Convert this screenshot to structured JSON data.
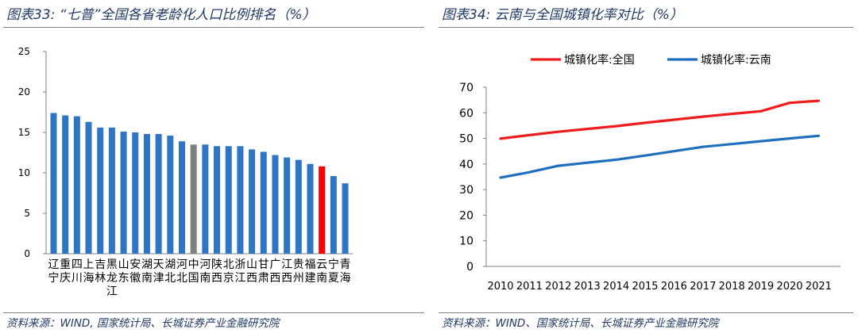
{
  "left": {
    "title": "图表33:  “七普”全国各省老龄化人口比例排名（%）",
    "source": "资料来源：WIND, 国家统计局、长城证券产业金融研究院"
  },
  "right": {
    "title": "图表34:  云南与全国城镇化率对比（%）",
    "source": "资料来源：WIND、国家统计局、长城证券产业金融研究院"
  },
  "colors": {
    "bar_default": "#2e75c5",
    "bar_national": "#808080",
    "bar_yunnan": "#ff0000",
    "line_national": "#ee1c1c",
    "line_yunnan": "#1f6fbf",
    "title": "#1f3864"
  },
  "chart_data": [
    {
      "type": "bar",
      "categories": [
        "辽宁",
        "重庆",
        "四川",
        "上海",
        "吉林",
        "黑龙江",
        "山东",
        "安徽",
        "湖南",
        "天津",
        "湖北",
        "河北",
        "中国",
        "河南",
        "陕西",
        "北京",
        "浙江",
        "山西",
        "甘肃",
        "广西",
        "江西",
        "贵州",
        "福建",
        "云南",
        "宁夏",
        "青海"
      ],
      "values": [
        17.4,
        17.1,
        17.0,
        16.3,
        15.6,
        15.6,
        15.1,
        15.0,
        14.8,
        14.8,
        14.6,
        13.9,
        13.5,
        13.5,
        13.3,
        13.3,
        13.3,
        12.9,
        12.6,
        12.2,
        11.9,
        11.6,
        11.1,
        10.8,
        9.6,
        8.7
      ],
      "highlight": {
        "中国": "national",
        "云南": "yunnan"
      },
      "ylim": [
        0,
        25
      ],
      "yticks": [
        0,
        5,
        10,
        15,
        20,
        25
      ],
      "grid": false
    },
    {
      "type": "line",
      "x": [
        "2010",
        "2011",
        "2012",
        "2013",
        "2014",
        "2015",
        "2016",
        "2017",
        "2018",
        "2019",
        "2020",
        "2021"
      ],
      "series": [
        {
          "name": "城镇化率:全国",
          "values": [
            49.9,
            51.3,
            52.6,
            53.7,
            54.8,
            56.1,
            57.3,
            58.5,
            59.6,
            60.6,
            63.9,
            64.7
          ]
        },
        {
          "name": "城镇化率:云南",
          "values": [
            34.7,
            36.8,
            39.3,
            40.5,
            41.7,
            43.3,
            45.0,
            46.7,
            47.8,
            48.9,
            50.0,
            51.0
          ]
        }
      ],
      "ylim": [
        0,
        70
      ],
      "yticks": [
        0,
        10,
        20,
        30,
        40,
        50,
        60,
        70
      ],
      "legend": "top",
      "grid": false
    }
  ]
}
